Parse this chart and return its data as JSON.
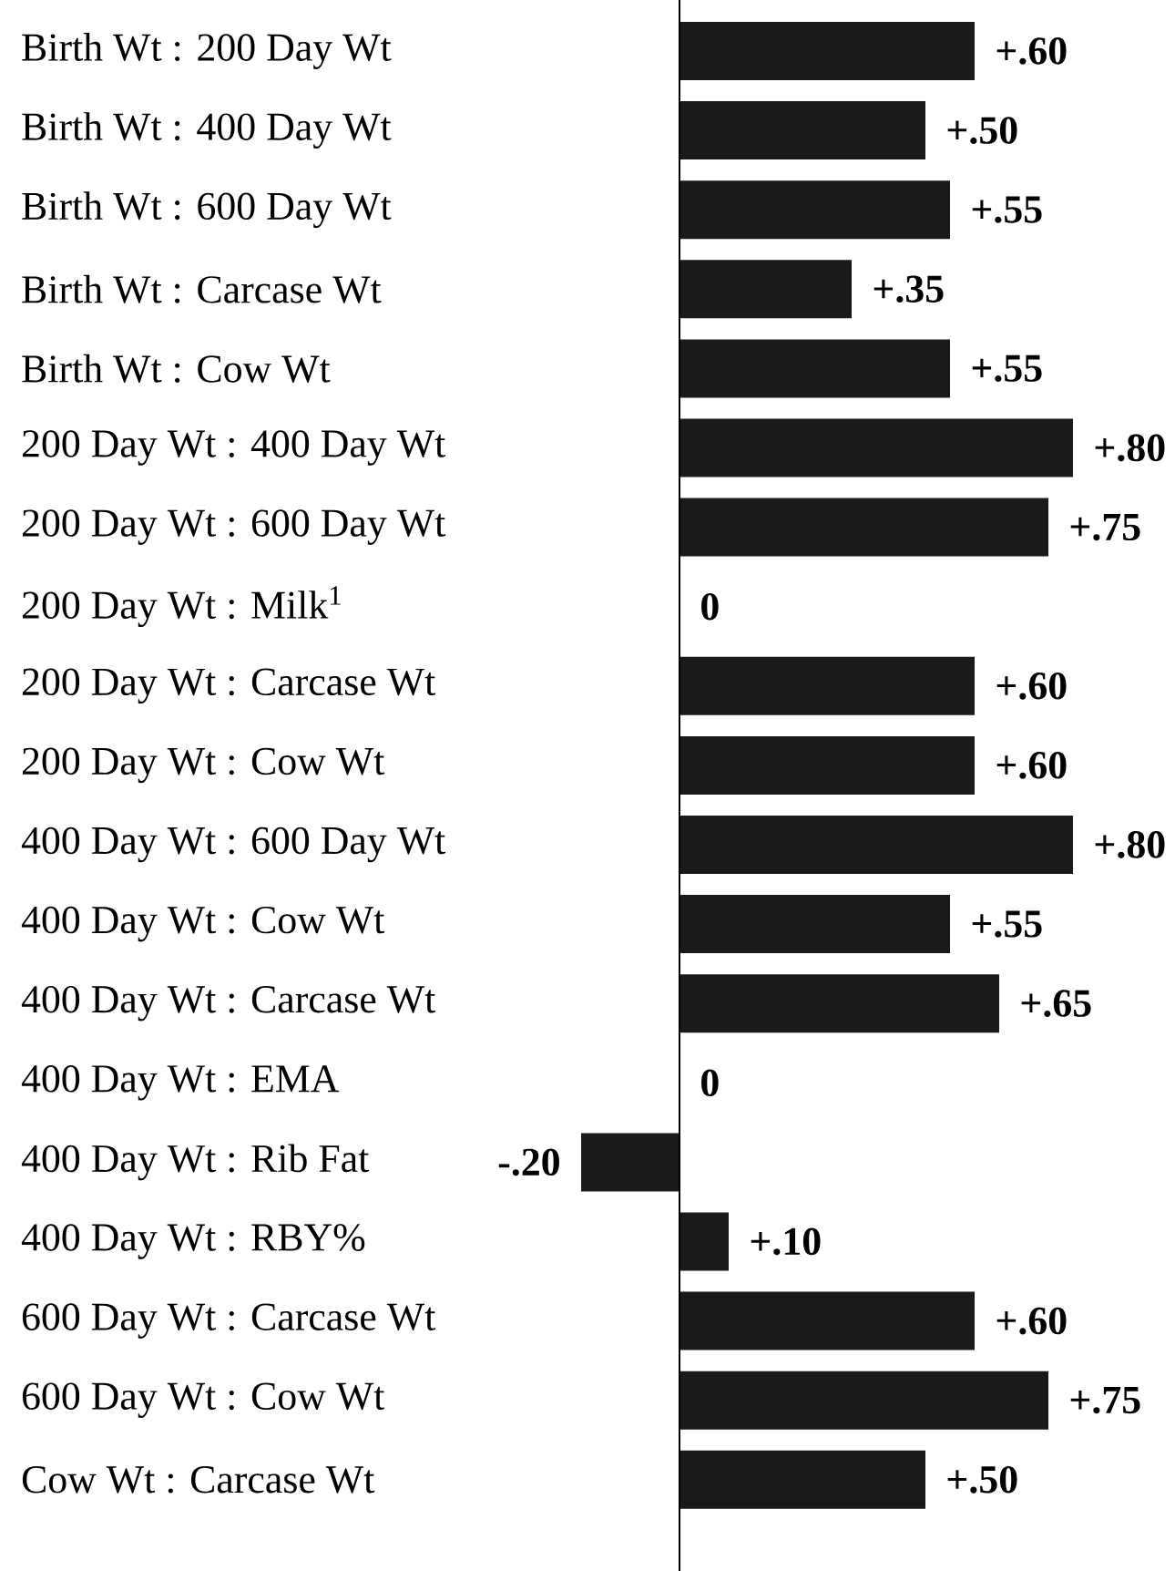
{
  "chart_data": {
    "type": "bar",
    "orientation": "horizontal",
    "categories": [
      "Birth Wt : 200 Day Wt",
      "Birth Wt : 400 Day Wt",
      "Birth Wt : 600 Day Wt",
      "Birth Wt : Carcase Wt",
      "Birth Wt : Cow Wt",
      "200 Day Wt : 400 Day Wt",
      "200 Day Wt : 600 Day Wt",
      "200 Day Wt : Milk$^{1}$",
      "200 Day Wt : Carcase Wt",
      "200 Day Wt : Cow Wt",
      "400 Day Wt : 600 Day Wt",
      "400 Day Wt : Cow Wt",
      "400 Day Wt : Carcase Wt",
      "400 Day Wt : EMA",
      "400 Day Wt : Rib Fat",
      "400 Day Wt : RBY%",
      "600 Day Wt : Carcase Wt",
      "600 Day Wt : Cow Wt",
      "Cow Wt : Carcase Wt"
    ],
    "values": [
      0.6,
      0.5,
      0.55,
      0.35,
      0.55,
      0.8,
      0.75,
      0,
      0.6,
      0.6,
      0.8,
      0.55,
      0.65,
      0,
      -0.2,
      0.1,
      0.6,
      0.75,
      0.5
    ],
    "value_labels": [
      "+.60",
      "+.50",
      "+.55",
      "+.35",
      "+.55",
      "+.80",
      "+.75",
      "0",
      "+.60",
      "+.60",
      "+.80",
      "+.55",
      "+.65",
      "0",
      "-.20",
      "+.10",
      "+.60",
      "+.75",
      "+.50"
    ],
    "color": "#1a1a1a"
  }
}
